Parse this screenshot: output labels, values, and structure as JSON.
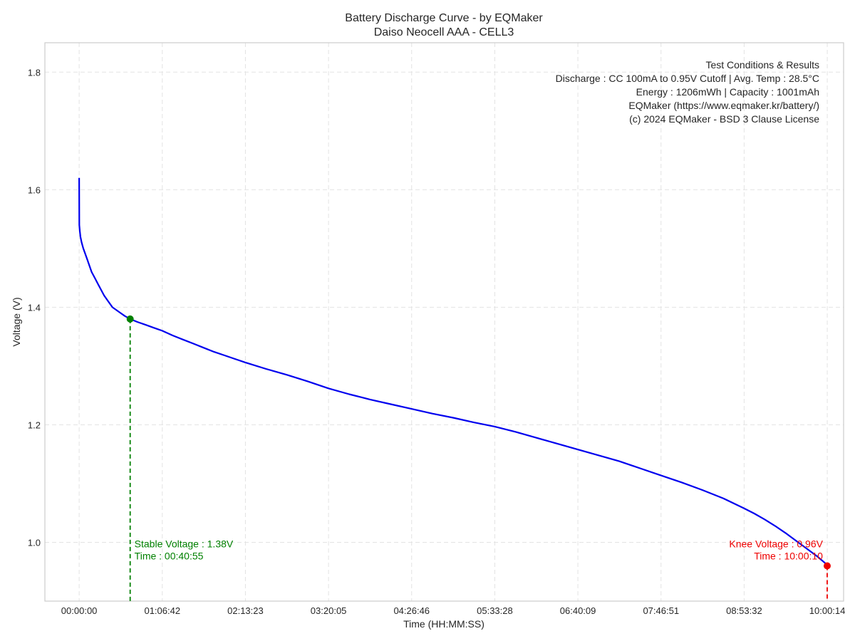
{
  "chart_data": {
    "type": "line",
    "title": "Battery Discharge Curve - by EQMaker",
    "subtitle": "Daiso Neocell AAA - CELL3",
    "xlabel": "Time (HH:MM:SS)",
    "ylabel": "Voltage (V)",
    "xlim": [
      -1650,
      36800
    ],
    "ylim": [
      0.9,
      1.85
    ],
    "grid": true,
    "x_tick_values": [
      0,
      4002,
      8003,
      12005,
      16006,
      20008,
      24009,
      28011,
      32012,
      36014
    ],
    "x_tick_labels": [
      "00:00:00",
      "01:06:42",
      "02:13:23",
      "03:20:05",
      "04:26:46",
      "05:33:28",
      "06:40:09",
      "07:46:51",
      "08:53:32",
      "10:00:14"
    ],
    "y_tick_values": [
      1.0,
      1.2,
      1.4,
      1.6,
      1.8
    ],
    "y_tick_labels": [
      "1.0",
      "1.2",
      "1.4",
      "1.6",
      "1.8"
    ],
    "series": [
      {
        "color": "#0000ee",
        "x": [
          0,
          5,
          30,
          60,
          120,
          200,
          300,
          400,
          500,
          600,
          750,
          900,
          1050,
          1200,
          1400,
          1600,
          1800,
          2000,
          2200,
          2455,
          2800,
          3200,
          3600,
          4000,
          4500,
          5000,
          5500,
          6000,
          6500,
          7000,
          7500,
          8000,
          9000,
          10000,
          11000,
          12000,
          13000,
          14000,
          15000,
          16000,
          17000,
          18000,
          19000,
          20000,
          21000,
          22000,
          23000,
          24000,
          25000,
          26000,
          27000,
          28000,
          29000,
          30000,
          31000,
          32000,
          32500,
          33000,
          33500,
          34000,
          34500,
          35000,
          35500,
          36000,
          36010
        ],
        "y": [
          1.62,
          1.54,
          1.53,
          1.52,
          1.51,
          1.5,
          1.49,
          1.48,
          1.47,
          1.46,
          1.45,
          1.44,
          1.43,
          1.42,
          1.41,
          1.4,
          1.395,
          1.39,
          1.385,
          1.38,
          1.375,
          1.37,
          1.365,
          1.36,
          1.352,
          1.345,
          1.338,
          1.331,
          1.324,
          1.318,
          1.312,
          1.306,
          1.295,
          1.285,
          1.274,
          1.262,
          1.252,
          1.243,
          1.235,
          1.227,
          1.219,
          1.212,
          1.204,
          1.197,
          1.188,
          1.178,
          1.168,
          1.158,
          1.148,
          1.138,
          1.126,
          1.114,
          1.102,
          1.089,
          1.075,
          1.058,
          1.049,
          1.039,
          1.028,
          1.016,
          1.003,
          0.99,
          0.977,
          0.962,
          0.96
        ]
      }
    ],
    "markers": [
      {
        "x": 2455,
        "y": 1.38,
        "color": "#008000"
      },
      {
        "x": 36010,
        "y": 0.96,
        "color": "#ee0000"
      }
    ]
  },
  "annotations": {
    "stable_voltage": "Stable Voltage : 1.38V",
    "stable_time": "Time : 00:40:55",
    "knee_voltage": "Knee Voltage : 0.96V",
    "knee_time": "Time : 10:00:10",
    "info_lines": [
      "Test Conditions & Results",
      "Discharge : CC 100mA to 0.95V Cutoff | Avg. Temp : 28.5°C",
      "Energy : 1206mWh | Capacity : 1001mAh",
      "EQMaker (https://www.eqmaker.kr/battery/)",
      "(c) 2024 EQMaker - BSD 3 Clause License"
    ]
  },
  "colors": {
    "curve": "#0000ee",
    "stable": "#008000",
    "knee": "#ee0000",
    "grid": "#e3e3e3",
    "frame": "#cccccc"
  }
}
